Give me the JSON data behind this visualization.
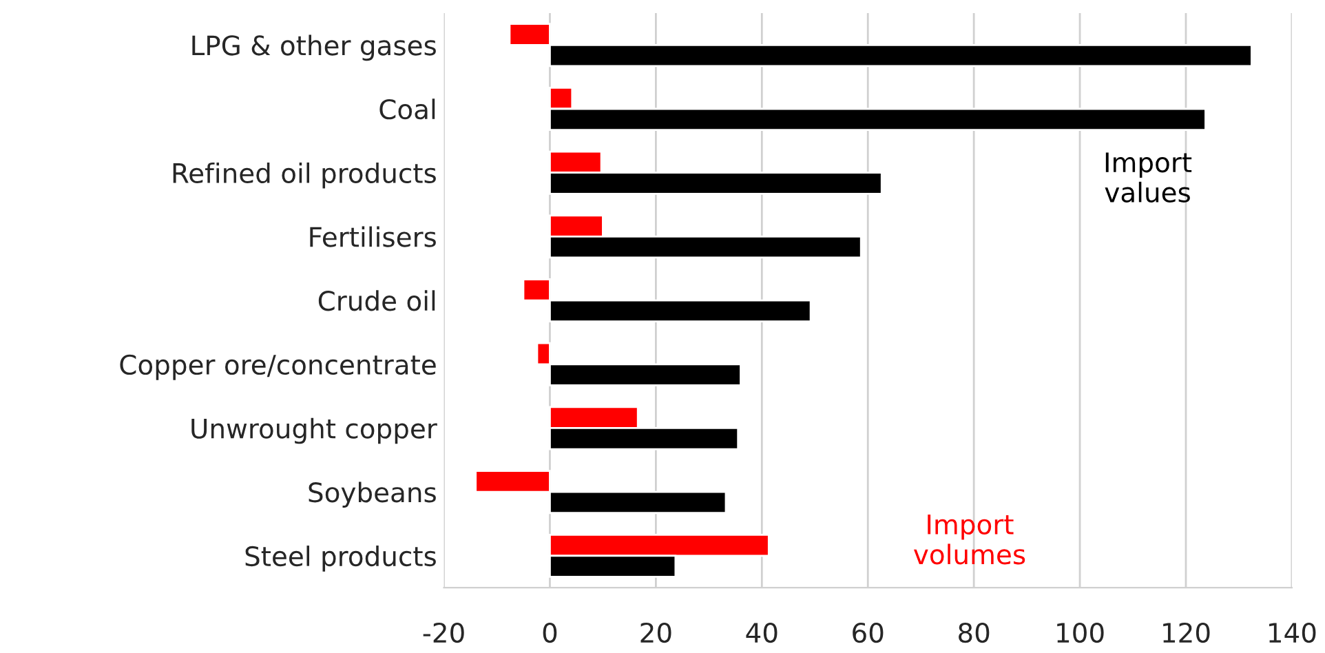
{
  "chart_data": {
    "type": "bar",
    "orientation": "horizontal",
    "categories": [
      "LPG & other gases",
      "Coal",
      "Refined oil products",
      "Fertilisers",
      "Crude oil",
      "Copper ore/concentrate",
      "Unwrought copper",
      "Soybeans",
      "Steel products"
    ],
    "series": [
      {
        "name": "Import volumes",
        "color": "#ff0000",
        "values": [
          -7.6,
          4.2,
          9.7,
          10,
          -5,
          -2.4,
          16.6,
          -14,
          41.3
        ]
      },
      {
        "name": "Import values",
        "color": "#000000",
        "values": [
          132.4,
          123.7,
          62.6,
          58.7,
          49.2,
          36,
          35.5,
          33.2,
          23.7
        ]
      }
    ],
    "xlim": [
      -20,
      140
    ],
    "xticks": [
      -20,
      0,
      20,
      40,
      60,
      80,
      100,
      120,
      140
    ],
    "grid": "x",
    "legend": false
  }
}
